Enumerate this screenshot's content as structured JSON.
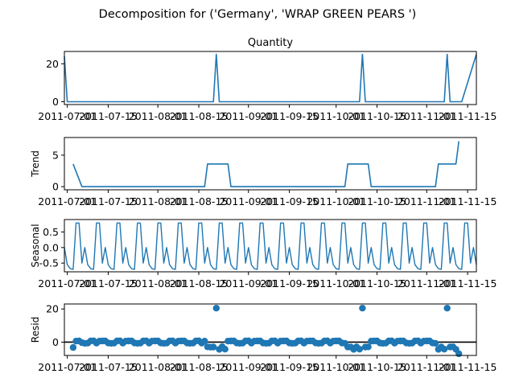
{
  "figure": {
    "suptitle": "Decomposition for ('Germany', 'WRAP GREEN PEARS ')"
  },
  "colors": {
    "series": "#1f77b4",
    "axis": "#000000",
    "zero_line": "#000000"
  },
  "chart_data": [
    {
      "type": "line",
      "title": "Quantity",
      "ylabel": "",
      "yticks": [
        "0",
        "20"
      ],
      "ytick_values": [
        0,
        20
      ],
      "ylim": [
        -1.5,
        26.5
      ],
      "xticks": [
        "2011-07-01",
        "2011-07-15",
        "2011-08-01",
        "2011-08-15",
        "2011-09-01",
        "2011-09-15",
        "2011-10-01",
        "2011-10-15",
        "2011-11-01",
        "2011-11-15"
      ],
      "xlim": [
        "2011-06-30",
        "2011-11-18"
      ],
      "series": [
        {
          "points": [
            [
              "2011-06-30",
              24
            ],
            [
              "2011-07-01",
              0
            ],
            [
              "2011-08-20",
              0
            ],
            [
              "2011-08-21",
              25
            ],
            [
              "2011-08-22",
              0
            ],
            [
              "2011-10-09",
              0
            ],
            [
              "2011-10-10",
              25
            ],
            [
              "2011-10-11",
              0
            ],
            [
              "2011-11-07",
              0
            ],
            [
              "2011-11-08",
              25
            ],
            [
              "2011-11-09",
              0
            ],
            [
              "2011-11-12",
              0
            ],
            [
              "2011-11-13",
              0
            ],
            [
              "2011-11-18",
              25
            ]
          ]
        }
      ]
    },
    {
      "type": "line",
      "title": "",
      "ylabel": "Trend",
      "yticks": [
        "0",
        "5"
      ],
      "ytick_values": [
        0,
        5
      ],
      "ylim": [
        -0.5,
        7.8
      ],
      "xticks": [
        "2011-07-01",
        "2011-07-15",
        "2011-08-01",
        "2011-08-15",
        "2011-09-01",
        "2011-09-15",
        "2011-10-01",
        "2011-10-15",
        "2011-11-01",
        "2011-11-15"
      ],
      "xlim": [
        "2011-06-30",
        "2011-11-18"
      ],
      "series": [
        {
          "points": [
            [
              "2011-07-03",
              3.6
            ],
            [
              "2011-07-06",
              0
            ],
            [
              "2011-08-17",
              0
            ],
            [
              "2011-08-18",
              3.6
            ],
            [
              "2011-08-25",
              3.6
            ],
            [
              "2011-08-26",
              0
            ],
            [
              "2011-10-04",
              0
            ],
            [
              "2011-10-05",
              3.6
            ],
            [
              "2011-10-12",
              3.6
            ],
            [
              "2011-10-13",
              0
            ],
            [
              "2011-11-04",
              0
            ],
            [
              "2011-11-05",
              3.6
            ],
            [
              "2011-11-11",
              3.6
            ],
            [
              "2011-11-12",
              7.2
            ]
          ]
        }
      ]
    },
    {
      "type": "line",
      "title": "",
      "ylabel": "Seasonal",
      "yticks": [
        "0.5",
        "0.0",
        "-0.5"
      ],
      "ytick_values": [
        0.5,
        0.0,
        -0.5
      ],
      "ylim": [
        -0.78,
        0.9
      ],
      "xticks": [
        "2011-07-01",
        "2011-07-15",
        "2011-08-01",
        "2011-08-15",
        "2011-09-01",
        "2011-09-15",
        "2011-10-01",
        "2011-10-15",
        "2011-11-01",
        "2011-11-15"
      ],
      "xlim": [
        "2011-06-30",
        "2011-11-18"
      ],
      "period_start": "2011-06-30",
      "period_end": "2011-11-18",
      "pattern": [
        0.0,
        -0.55,
        -0.68,
        -0.7,
        0.79,
        0.79,
        -0.5
      ]
    },
    {
      "type": "scatter",
      "title": "",
      "ylabel": "Resid",
      "yticks": [
        "0",
        "20"
      ],
      "ytick_values": [
        0,
        20
      ],
      "ylim": [
        -8,
        23
      ],
      "xticks": [
        "2011-07-01",
        "2011-07-15",
        "2011-08-01",
        "2011-08-15",
        "2011-09-01",
        "2011-09-15",
        "2011-10-01",
        "2011-10-15",
        "2011-11-01",
        "2011-11-15"
      ],
      "xlim": [
        "2011-06-30",
        "2011-11-18"
      ],
      "zero_line": true,
      "series": [
        {
          "points": [
            [
              "2011-07-03",
              -3.2
            ],
            [
              "2011-07-04",
              0.6
            ],
            [
              "2011-07-05",
              0.7
            ],
            [
              "2011-07-06",
              -0.3
            ],
            [
              "2011-07-07",
              -0.7
            ],
            [
              "2011-07-08",
              -0.6
            ],
            [
              "2011-07-09",
              0.7
            ],
            [
              "2011-07-10",
              0.8
            ],
            [
              "2011-07-11",
              -0.6
            ],
            [
              "2011-07-12",
              0.6
            ],
            [
              "2011-07-13",
              0.7
            ],
            [
              "2011-07-14",
              0.7
            ],
            [
              "2011-07-15",
              -0.5
            ],
            [
              "2011-07-16",
              -0.7
            ],
            [
              "2011-07-17",
              -0.6
            ],
            [
              "2011-07-18",
              0.7
            ],
            [
              "2011-07-19",
              0.8
            ],
            [
              "2011-07-20",
              -0.6
            ],
            [
              "2011-07-21",
              0.6
            ],
            [
              "2011-07-22",
              0.7
            ],
            [
              "2011-07-23",
              0.7
            ],
            [
              "2011-07-24",
              -0.5
            ],
            [
              "2011-07-25",
              -0.7
            ],
            [
              "2011-07-26",
              -0.6
            ],
            [
              "2011-07-27",
              0.7
            ],
            [
              "2011-07-28",
              0.8
            ],
            [
              "2011-07-29",
              -0.6
            ],
            [
              "2011-07-30",
              0.6
            ],
            [
              "2011-07-31",
              0.7
            ],
            [
              "2011-08-01",
              0.7
            ],
            [
              "2011-08-02",
              -0.5
            ],
            [
              "2011-08-03",
              -0.7
            ],
            [
              "2011-08-04",
              -0.6
            ],
            [
              "2011-08-05",
              0.7
            ],
            [
              "2011-08-06",
              0.8
            ],
            [
              "2011-08-07",
              -0.6
            ],
            [
              "2011-08-08",
              0.6
            ],
            [
              "2011-08-09",
              0.7
            ],
            [
              "2011-08-10",
              0.7
            ],
            [
              "2011-08-11",
              -0.5
            ],
            [
              "2011-08-12",
              -0.7
            ],
            [
              "2011-08-13",
              -0.6
            ],
            [
              "2011-08-14",
              0.7
            ],
            [
              "2011-08-15",
              0.8
            ],
            [
              "2011-08-16",
              -0.6
            ],
            [
              "2011-08-17",
              0.6
            ],
            [
              "2011-08-18",
              -2.8
            ],
            [
              "2011-08-19",
              -3.0
            ],
            [
              "2011-08-20",
              -2.9
            ],
            [
              "2011-08-21",
              20.5
            ],
            [
              "2011-08-22",
              -4.3
            ],
            [
              "2011-08-23",
              -2.7
            ],
            [
              "2011-08-24",
              -4.2
            ],
            [
              "2011-08-25",
              0.6
            ],
            [
              "2011-08-26",
              0.7
            ],
            [
              "2011-08-27",
              0.7
            ],
            [
              "2011-08-28",
              -0.5
            ],
            [
              "2011-08-29",
              -0.7
            ],
            [
              "2011-08-30",
              -0.6
            ],
            [
              "2011-08-31",
              0.7
            ],
            [
              "2011-09-01",
              0.8
            ],
            [
              "2011-09-02",
              -0.6
            ],
            [
              "2011-09-03",
              0.6
            ],
            [
              "2011-09-04",
              0.7
            ],
            [
              "2011-09-05",
              0.7
            ],
            [
              "2011-09-06",
              -0.5
            ],
            [
              "2011-09-07",
              -0.7
            ],
            [
              "2011-09-08",
              -0.6
            ],
            [
              "2011-09-09",
              0.7
            ],
            [
              "2011-09-10",
              0.8
            ],
            [
              "2011-09-11",
              -0.6
            ],
            [
              "2011-09-12",
              0.6
            ],
            [
              "2011-09-13",
              0.7
            ],
            [
              "2011-09-14",
              0.7
            ],
            [
              "2011-09-15",
              -0.5
            ],
            [
              "2011-09-16",
              -0.7
            ],
            [
              "2011-09-17",
              -0.6
            ],
            [
              "2011-09-18",
              0.7
            ],
            [
              "2011-09-19",
              0.8
            ],
            [
              "2011-09-20",
              -0.6
            ],
            [
              "2011-09-21",
              0.6
            ],
            [
              "2011-09-22",
              0.7
            ],
            [
              "2011-09-23",
              0.7
            ],
            [
              "2011-09-24",
              -0.5
            ],
            [
              "2011-09-25",
              -0.7
            ],
            [
              "2011-09-26",
              -0.6
            ],
            [
              "2011-09-27",
              0.7
            ],
            [
              "2011-09-28",
              0.8
            ],
            [
              "2011-09-29",
              -0.6
            ],
            [
              "2011-09-30",
              0.6
            ],
            [
              "2011-10-01",
              0.7
            ],
            [
              "2011-10-02",
              0.7
            ],
            [
              "2011-10-03",
              -0.5
            ],
            [
              "2011-10-04",
              -0.7
            ],
            [
              "2011-10-05",
              -2.9
            ],
            [
              "2011-10-06",
              -2.9
            ],
            [
              "2011-10-07",
              -4.3
            ],
            [
              "2011-10-08",
              -2.8
            ],
            [
              "2011-10-09",
              -4.2
            ],
            [
              "2011-10-10",
              20.5
            ],
            [
              "2011-10-11",
              -2.9
            ],
            [
              "2011-10-12",
              -2.8
            ],
            [
              "2011-10-13",
              0.6
            ],
            [
              "2011-10-14",
              0.7
            ],
            [
              "2011-10-15",
              0.7
            ],
            [
              "2011-10-16",
              -0.5
            ],
            [
              "2011-10-17",
              -0.7
            ],
            [
              "2011-10-18",
              -0.6
            ],
            [
              "2011-10-19",
              0.7
            ],
            [
              "2011-10-20",
              0.8
            ],
            [
              "2011-10-21",
              -0.6
            ],
            [
              "2011-10-22",
              0.6
            ],
            [
              "2011-10-23",
              0.7
            ],
            [
              "2011-10-24",
              0.7
            ],
            [
              "2011-10-25",
              -0.5
            ],
            [
              "2011-10-26",
              -0.7
            ],
            [
              "2011-10-27",
              -0.6
            ],
            [
              "2011-10-28",
              0.7
            ],
            [
              "2011-10-29",
              0.8
            ],
            [
              "2011-10-30",
              -0.6
            ],
            [
              "2011-10-31",
              0.6
            ],
            [
              "2011-11-01",
              0.7
            ],
            [
              "2011-11-02",
              0.7
            ],
            [
              "2011-11-03",
              -0.5
            ],
            [
              "2011-11-04",
              -0.7
            ],
            [
              "2011-11-05",
              -4.3
            ],
            [
              "2011-11-06",
              -2.9
            ],
            [
              "2011-11-07",
              -4.2
            ],
            [
              "2011-11-08",
              20.5
            ],
            [
              "2011-11-09",
              -2.9
            ],
            [
              "2011-11-10",
              -2.8
            ],
            [
              "2011-11-11",
              -4.3
            ],
            [
              "2011-11-12",
              -7.0
            ]
          ]
        }
      ]
    }
  ]
}
